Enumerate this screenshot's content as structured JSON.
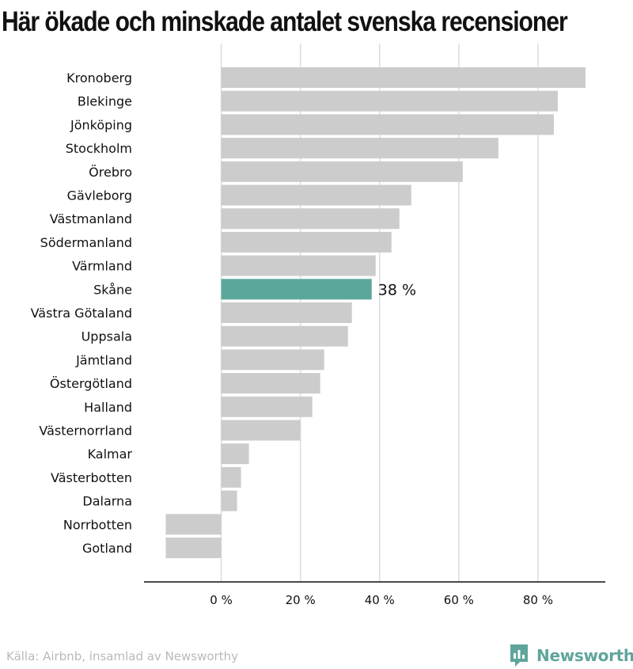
{
  "title": "Här ökade och minskade antalet svenska recensioner",
  "source": "Källa: Airbnb, insamlad av Newsworthy",
  "brand": {
    "name": "Newsworthy",
    "icon": "newsworthy-logo-icon"
  },
  "colors": {
    "bar": "#cccccc",
    "highlight": "#5ba79b",
    "grid": "#dcdcdc",
    "axis": "#111111",
    "brand": "#5fa59c"
  },
  "chart_data": {
    "type": "bar",
    "orientation": "horizontal",
    "categories": [
      "Kronoberg",
      "Blekinge",
      "Jönköping",
      "Stockholm",
      "Örebro",
      "Gävleborg",
      "Västmanland",
      "Södermanland",
      "Värmland",
      "Skåne",
      "Västra Götaland",
      "Uppsala",
      "Jämtland",
      "Östergötland",
      "Halland",
      "Västernorrland",
      "Kalmar",
      "Västerbotten",
      "Dalarna",
      "Norrbotten",
      "Gotland"
    ],
    "values": [
      92,
      85,
      84,
      70,
      61,
      48,
      45,
      43,
      39,
      38,
      33,
      32,
      26,
      25,
      23,
      20,
      7,
      5,
      4,
      -14,
      -14
    ],
    "highlight": "Skåne",
    "highlight_label": "38 %",
    "xticks": [
      0,
      20,
      40,
      60,
      80
    ],
    "xtick_labels": [
      "0 %",
      "20 %",
      "40 %",
      "60 %",
      "80 %"
    ],
    "xlim": [
      -19.5,
      97
    ],
    "grid": true
  }
}
